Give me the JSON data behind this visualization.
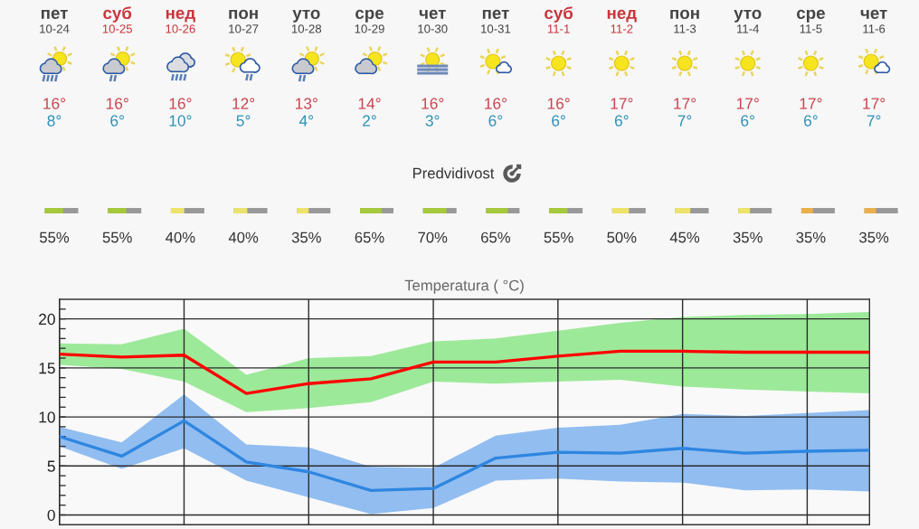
{
  "chart_data": [
    {
      "type": "other",
      "categories": [
        "пет\n10-24",
        "суб\n10-25",
        "нед\n10-26",
        "пон\n10-27",
        "уто\n10-28",
        "сре\n10-29",
        "чет\n10-30",
        "пет\n10-31",
        "суб\n11-1",
        "нед\n11-2",
        "пон\n11-3",
        "уто\n11-4",
        "сре\n11-5",
        "чет\n11-6"
      ],
      "colors": [
        "#444444",
        "#c9353b",
        "#c9353b",
        "#444444",
        "#444444",
        "#444444",
        "#444444",
        "#444444",
        "#c9353b",
        "#c9353b",
        "#444444",
        "#444444",
        "#444444",
        "#444444"
      ],
      "series": [
        {
          "color": "#c9444f",
          "values": [
            16,
            16,
            16,
            12,
            13,
            14,
            16,
            16,
            16,
            17,
            17,
            17,
            17,
            17
          ],
          "value_labels": [
            "16°",
            "16°",
            "16°",
            "12°",
            "13°",
            "14°",
            "16°",
            "16°",
            "16°",
            "17°",
            "17°",
            "17°",
            "17°",
            "17°"
          ]
        },
        {
          "color": "#2e90b6",
          "values": [
            8,
            6,
            10,
            5,
            4,
            2,
            3,
            6,
            6,
            6,
            7,
            6,
            6,
            7
          ],
          "value_labels": [
            "8°",
            "6°",
            "10°",
            "5°",
            "4°",
            "2°",
            "3°",
            "6°",
            "6°",
            "6°",
            "7°",
            "6°",
            "6°",
            "7°"
          ]
        }
      ]
    },
    {
      "type": "other",
      "title": "Predvidivost",
      "values": [
        55,
        55,
        40,
        40,
        35,
        65,
        70,
        65,
        55,
        50,
        45,
        35,
        35,
        35
      ],
      "value_labels": [
        "55%",
        "55%",
        "40%",
        "40%",
        "35%",
        "65%",
        "70%",
        "65%",
        "55%",
        "50%",
        "45%",
        "35%",
        "35%",
        "35%"
      ],
      "colors": [
        "#a5c83c",
        "#a5c83c",
        "#ece36a",
        "#ece36a",
        "#ece36a",
        "#a5c83c",
        "#a5c83c",
        "#a5c83c",
        "#a5c83c",
        "#ece36a",
        "#ece36a",
        "#ece36a",
        "#e9b04c",
        "#e9b04c"
      ]
    },
    {
      "type": "line",
      "title": "Temperatura ( °C)",
      "categories": [
        null,
        null,
        null,
        null,
        null,
        null,
        null,
        null,
        null,
        null,
        null,
        null,
        null,
        null
      ],
      "series": [
        {
          "color": "#ff0000",
          "values": [
            16.4,
            16.1,
            16.3,
            12.4,
            13.4,
            13.9,
            15.6,
            15.6,
            16.2,
            16.7,
            16.7,
            16.6,
            16.6,
            16.6
          ],
          "lower": [
            15.3,
            14.9,
            13.6,
            10.5,
            10.9,
            11.5,
            13.6,
            13.4,
            13.6,
            13.8,
            13.1,
            12.8,
            12.6,
            12.4
          ],
          "upper": [
            17.5,
            17.4,
            19.0,
            14.3,
            16.0,
            16.2,
            17.7,
            18.0,
            18.8,
            19.6,
            20.2,
            20.4,
            20.5,
            20.7
          ]
        },
        {
          "color": "#2e86e0",
          "values": [
            8.0,
            6.0,
            9.6,
            5.4,
            4.4,
            2.5,
            2.7,
            5.8,
            6.4,
            6.3,
            6.8,
            6.3,
            6.5,
            6.6
          ],
          "lower": [
            7.0,
            4.7,
            6.8,
            3.5,
            1.8,
            0.1,
            0.7,
            3.5,
            3.7,
            3.4,
            3.3,
            2.5,
            2.6,
            2.4
          ],
          "upper": [
            9.0,
            7.4,
            12.3,
            7.2,
            6.9,
            4.9,
            4.8,
            8.1,
            8.9,
            9.2,
            10.3,
            10.1,
            10.4,
            10.7
          ]
        }
      ],
      "ylim": [
        -1,
        22
      ],
      "yticks": [
        0,
        {
          "value": 1,
          "label": null
        },
        {
          "value": 2,
          "label": null
        },
        {
          "value": 3,
          "label": null
        },
        {
          "value": 4,
          "label": null
        },
        5,
        {
          "value": 6,
          "label": null
        },
        {
          "value": 7,
          "label": null
        },
        {
          "value": 8,
          "label": null
        },
        {
          "value": 9,
          "label": null
        },
        10,
        {
          "value": 11,
          "label": null
        },
        {
          "value": 12,
          "label": null
        },
        {
          "value": 13,
          "label": null
        },
        {
          "value": 14,
          "label": null
        },
        15,
        {
          "value": 16,
          "label": null
        },
        {
          "value": 17,
          "label": null
        },
        {
          "value": 18,
          "label": null
        },
        {
          "value": 19,
          "label": null
        },
        20,
        {
          "value": 21,
          "label": null
        }
      ],
      "grid": true,
      "tick_labels": "y"
    }
  ]
}
